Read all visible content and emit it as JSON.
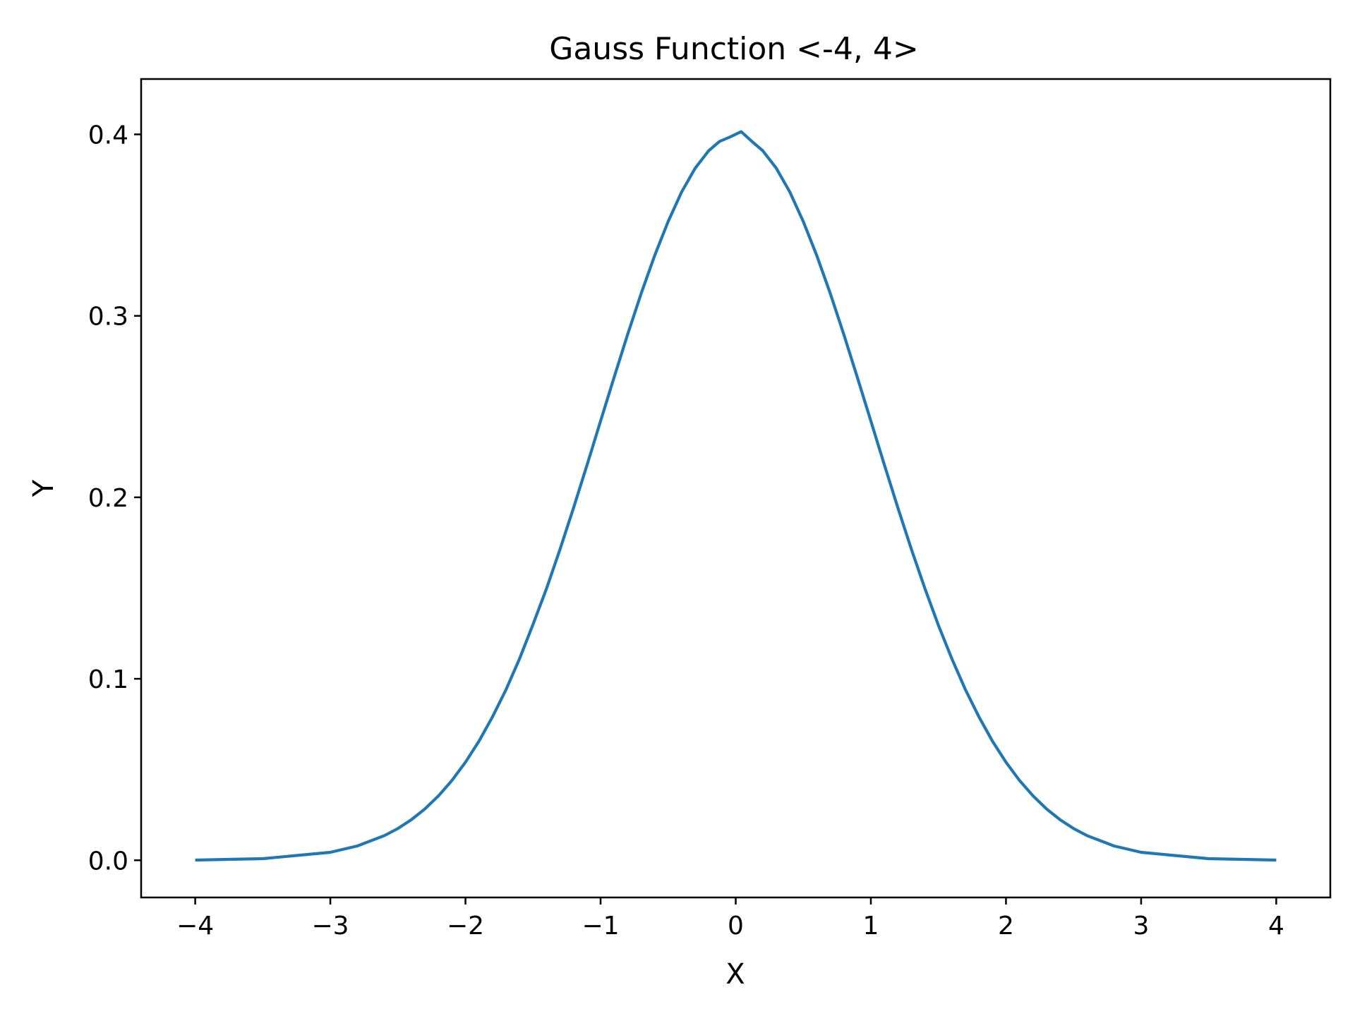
{
  "chart_data": {
    "type": "line",
    "title": "Gauss Function <-4, 4>",
    "xlabel": "X",
    "ylabel": "Y",
    "xlim": [
      -4.4,
      4.4
    ],
    "ylim": [
      -0.0205,
      0.4305
    ],
    "grid": false,
    "legend": "none",
    "x_ticks": [
      -4,
      -3,
      -2,
      -1,
      0,
      1,
      2,
      3,
      4
    ],
    "x_tick_labels": [
      "−4",
      "−3",
      "−2",
      "−1",
      "0",
      "1",
      "2",
      "3",
      "4"
    ],
    "y_ticks": [
      0.0,
      0.1,
      0.2,
      0.3,
      0.4
    ],
    "y_tick_labels": [
      "0.0",
      "0.1",
      "0.2",
      "0.3",
      "0.4"
    ],
    "series": [
      {
        "color": "#1f77b4",
        "x": [
          -4.0,
          -3.5,
          -3.0,
          -2.8,
          -2.6,
          -2.5,
          -2.4,
          -2.3,
          -2.2,
          -2.1,
          -2.0,
          -1.9,
          -1.8,
          -1.7,
          -1.6,
          -1.5,
          -1.4,
          -1.3,
          -1.2,
          -1.1,
          -1.0,
          -0.9,
          -0.8,
          -0.7,
          -0.6,
          -0.5,
          -0.4,
          -0.3,
          -0.2,
          -0.12,
          -0.04,
          0.04,
          0.12,
          0.2,
          0.3,
          0.4,
          0.5,
          0.6,
          0.7,
          0.8,
          0.9,
          1.0,
          1.1,
          1.2,
          1.3,
          1.4,
          1.5,
          1.6,
          1.7,
          1.8,
          1.9,
          2.0,
          2.1,
          2.2,
          2.3,
          2.4,
          2.5,
          2.6,
          2.8,
          3.0,
          3.5,
          4.0
        ],
        "y": [
          0.0001,
          0.0009,
          0.0044,
          0.0079,
          0.0136,
          0.0175,
          0.0224,
          0.0283,
          0.0355,
          0.044,
          0.054,
          0.0656,
          0.079,
          0.094,
          0.111,
          0.13,
          0.1497,
          0.1714,
          0.1942,
          0.2179,
          0.242,
          0.2661,
          0.2897,
          0.3123,
          0.3332,
          0.352,
          0.3683,
          0.3814,
          0.391,
          0.3961,
          0.3986,
          0.4015,
          0.3961,
          0.391,
          0.3814,
          0.3683,
          0.352,
          0.3332,
          0.3123,
          0.2897,
          0.2661,
          0.242,
          0.2179,
          0.1942,
          0.1714,
          0.1497,
          0.1295,
          0.1109,
          0.094,
          0.079,
          0.0656,
          0.054,
          0.044,
          0.0355,
          0.0283,
          0.0224,
          0.0175,
          0.0136,
          0.0079,
          0.0044,
          0.0009,
          0.0001
        ]
      }
    ]
  }
}
